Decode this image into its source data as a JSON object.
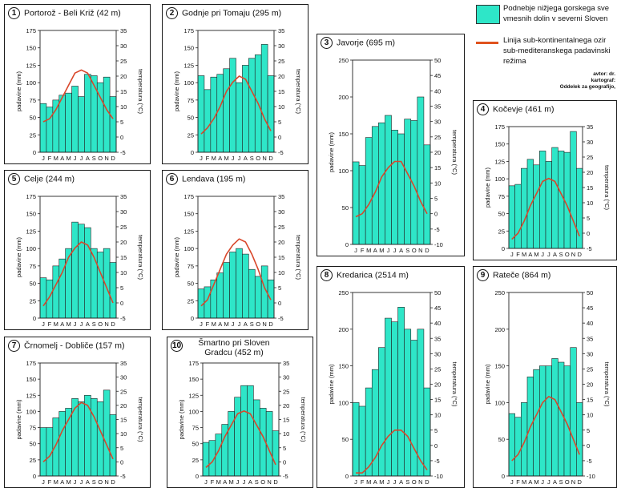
{
  "months": [
    "J",
    "F",
    "M",
    "A",
    "M",
    "J",
    "J",
    "A",
    "S",
    "O",
    "N",
    "D"
  ],
  "legend": {
    "precip_label": "Podnebje nižjega gorskega sve vmesnih dolin v severni Sloven",
    "temp_label": "Linija sub-kontinentalnega ozir sub-mediteranskega padavinski režima",
    "credits": [
      "avtor: dr.",
      "kartograf:",
      "Oddelek za geografijo,"
    ],
    "precip_color": "#2ee6c8",
    "temp_color": "#d9472b"
  },
  "panels": [
    {
      "num": "1",
      "title": "Portorož - Beli Križ (42 m)",
      "ylabel": "padavine (mm)",
      "y2label": "temperatura (°C)",
      "precip_ticks": [
        0,
        25,
        50,
        75,
        100,
        125,
        150,
        175
      ],
      "temp_ticks": [
        -5,
        0,
        5,
        10,
        15,
        20,
        25,
        30,
        35
      ],
      "chart_data": {
        "type": "bar",
        "precip_mm": [
          70,
          65,
          75,
          82,
          85,
          95,
          80,
          112,
          110,
          100,
          108,
          80
        ],
        "temp_c": [
          5,
          6,
          9,
          13,
          17,
          21,
          22,
          21,
          17,
          13,
          9,
          6
        ],
        "precip_range": [
          0,
          175
        ],
        "temp_range": [
          -5,
          35
        ]
      }
    },
    {
      "num": "2",
      "title": "Godnje pri Tomaju (295 m)",
      "ylabel": "padavine (mm)",
      "y2label": "temperatura (°C)",
      "precip_ticks": [
        0,
        25,
        50,
        75,
        100,
        125,
        150,
        175
      ],
      "temp_ticks": [
        -5,
        0,
        5,
        10,
        15,
        20,
        25,
        30,
        35
      ],
      "chart_data": {
        "type": "bar",
        "precip_mm": [
          110,
          90,
          108,
          112,
          120,
          135,
          100,
          125,
          135,
          140,
          155,
          110
        ],
        "temp_c": [
          1,
          3,
          6,
          10,
          15,
          18,
          20,
          19,
          15,
          11,
          6,
          2
        ],
        "precip_range": [
          0,
          175
        ],
        "temp_range": [
          -5,
          35
        ]
      }
    },
    {
      "num": "3",
      "title": "Javorje (695 m)",
      "ylabel": "padavine (mm)",
      "y2label": "temperatura (°C)",
      "precip_ticks": [
        0,
        50,
        100,
        150,
        200,
        250
      ],
      "temp_ticks": [
        -10,
        -5,
        0,
        5,
        10,
        15,
        20,
        25,
        30,
        35,
        40,
        45,
        50
      ],
      "chart_data": {
        "type": "bar",
        "precip_mm": [
          112,
          107,
          145,
          160,
          165,
          175,
          155,
          150,
          170,
          168,
          200,
          135
        ],
        "temp_c": [
          -1,
          0,
          3,
          7,
          12,
          15,
          17,
          17,
          13,
          9,
          4,
          0
        ],
        "precip_range": [
          0,
          250
        ],
        "temp_range": [
          -10,
          50
        ]
      }
    },
    {
      "num": "4",
      "title": "Kočevje (461 m)",
      "ylabel": "padavine (mm)",
      "y2label": "temperatura (°C)",
      "precip_ticks": [
        0,
        25,
        50,
        75,
        100,
        125,
        150,
        175
      ],
      "temp_ticks": [
        -5,
        0,
        5,
        10,
        15,
        20,
        25,
        30,
        35
      ],
      "chart_data": {
        "type": "bar",
        "precip_mm": [
          90,
          92,
          115,
          128,
          120,
          140,
          125,
          145,
          140,
          138,
          168,
          115
        ],
        "temp_c": [
          -2,
          0,
          4,
          9,
          13,
          17,
          18,
          17,
          13,
          9,
          4,
          -1
        ],
        "precip_range": [
          0,
          175
        ],
        "temp_range": [
          -5,
          35
        ]
      }
    },
    {
      "num": "5",
      "title": "Celje (244 m)",
      "ylabel": "padavine (mm)",
      "y2label": "temperatura (°C)",
      "precip_ticks": [
        0,
        25,
        50,
        75,
        100,
        125,
        150,
        175
      ],
      "temp_ticks": [
        -5,
        0,
        5,
        10,
        15,
        20,
        25,
        30,
        35
      ],
      "chart_data": {
        "type": "bar",
        "precip_mm": [
          58,
          55,
          75,
          85,
          100,
          138,
          135,
          130,
          100,
          95,
          100,
          80
        ],
        "temp_c": [
          -1,
          2,
          6,
          10,
          15,
          18,
          20,
          19,
          15,
          10,
          5,
          0
        ],
        "precip_range": [
          0,
          175
        ],
        "temp_range": [
          -5,
          35
        ]
      }
    },
    {
      "num": "6",
      "title": "Lendava (195 m)",
      "ylabel": "padavine (mm)",
      "y2label": "temperatura (°C)",
      "precip_ticks": [
        0,
        25,
        50,
        75,
        100,
        125,
        150,
        175
      ],
      "temp_ticks": [
        -5,
        0,
        5,
        10,
        15,
        20,
        25,
        30,
        35
      ],
      "chart_data": {
        "type": "bar",
        "precip_mm": [
          42,
          45,
          55,
          65,
          80,
          95,
          100,
          92,
          70,
          60,
          75,
          55
        ],
        "temp_c": [
          -1,
          1,
          6,
          11,
          16,
          19,
          21,
          20,
          16,
          11,
          5,
          1
        ],
        "precip_range": [
          0,
          175
        ],
        "temp_range": [
          -5,
          35
        ]
      }
    },
    {
      "num": "7",
      "title": "Črnomelj - Dobliče (157 m)",
      "ylabel": "padavine (mm)",
      "y2label": "temperatura (°C)",
      "precip_ticks": [
        0,
        25,
        50,
        75,
        100,
        125,
        150,
        175
      ],
      "temp_ticks": [
        -5,
        0,
        5,
        10,
        15,
        20,
        25,
        30,
        35
      ],
      "chart_data": {
        "type": "bar",
        "precip_mm": [
          75,
          75,
          90,
          100,
          105,
          120,
          115,
          125,
          120,
          115,
          133,
          95
        ],
        "temp_c": [
          0,
          2,
          6,
          11,
          15,
          19,
          21,
          20,
          16,
          11,
          6,
          1
        ],
        "precip_range": [
          0,
          175
        ],
        "temp_range": [
          -5,
          35
        ]
      }
    },
    {
      "num": "10",
      "title": "Šmartno pri Sloven Gradcu (452 m)",
      "ylabel": "padavine (mm)",
      "y2label": "temperatura (°C)",
      "precip_ticks": [
        0,
        25,
        50,
        75,
        100,
        125,
        150,
        175
      ],
      "temp_ticks": [
        -5,
        0,
        5,
        10,
        15,
        20,
        25,
        30,
        35
      ],
      "chart_data": {
        "type": "bar",
        "precip_mm": [
          52,
          55,
          65,
          80,
          100,
          122,
          140,
          140,
          118,
          105,
          100,
          70
        ],
        "temp_c": [
          -2,
          0,
          4,
          9,
          13,
          17,
          18,
          17,
          13,
          9,
          4,
          -1
        ],
        "precip_range": [
          0,
          175
        ],
        "temp_range": [
          -5,
          35
        ]
      }
    },
    {
      "num": "8",
      "title": "Kredarica (2514 m)",
      "ylabel": "padavine (mm)",
      "y2label": "temperatura (°C)",
      "precip_ticks": [
        0,
        50,
        100,
        150,
        200,
        250
      ],
      "temp_ticks": [
        -10,
        -5,
        0,
        5,
        10,
        15,
        20,
        25,
        30,
        35,
        40,
        45,
        50
      ],
      "chart_data": {
        "type": "bar",
        "precip_mm": [
          100,
          95,
          120,
          145,
          175,
          215,
          210,
          230,
          200,
          185,
          200,
          120
        ],
        "temp_c": [
          -9,
          -9,
          -7,
          -4,
          0,
          3,
          5,
          5,
          3,
          -1,
          -5,
          -8
        ],
        "precip_range": [
          0,
          250
        ],
        "temp_range": [
          -10,
          50
        ]
      }
    },
    {
      "num": "9",
      "title": "Rateče (864 m)",
      "ylabel": "padavine (mm)",
      "y2label": "temperatura (°C)",
      "precip_ticks": [
        0,
        50,
        100,
        150,
        200,
        250
      ],
      "temp_ticks": [
        -10,
        -5,
        0,
        5,
        10,
        15,
        20,
        25,
        30,
        35,
        40,
        45,
        50
      ],
      "chart_data": {
        "type": "bar",
        "precip_mm": [
          85,
          80,
          100,
          135,
          145,
          150,
          150,
          160,
          155,
          150,
          175,
          100
        ],
        "temp_c": [
          -5,
          -3,
          1,
          6,
          10,
          14,
          16,
          15,
          11,
          7,
          2,
          -3
        ],
        "precip_range": [
          0,
          250
        ],
        "temp_range": [
          -10,
          50
        ]
      }
    }
  ]
}
